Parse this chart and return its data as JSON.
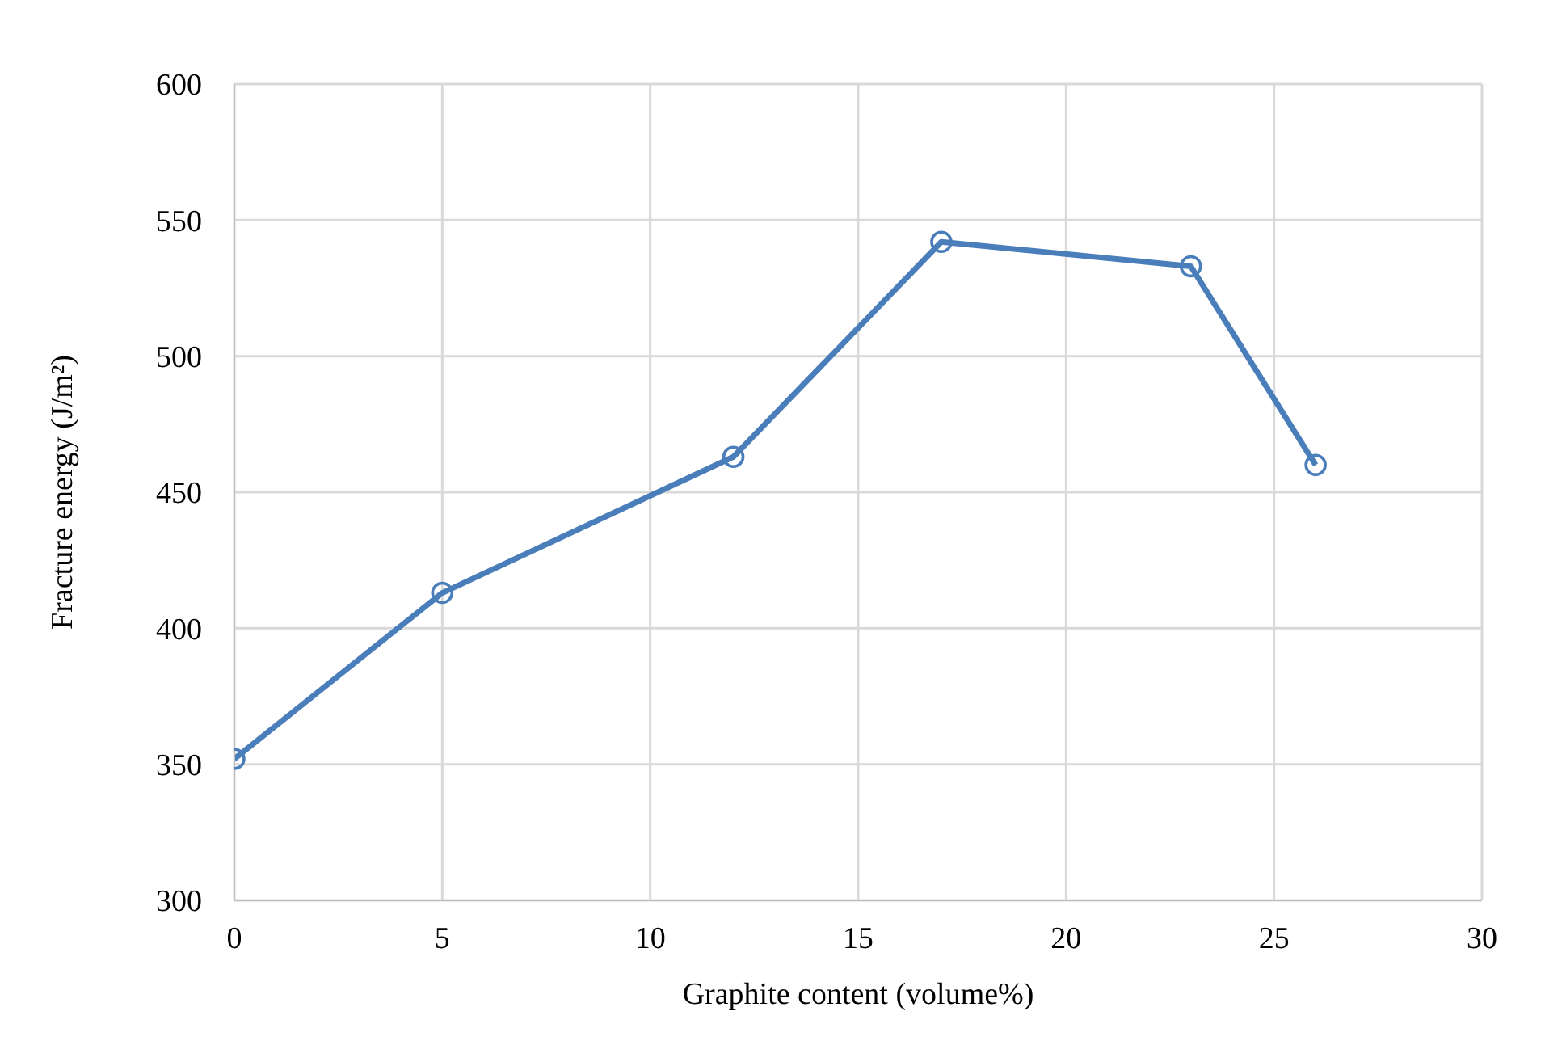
{
  "chart_data": {
    "type": "line",
    "xlabel": "Graphite content (volume%)",
    "ylabel": "Fracture energy (J/m²)",
    "x": [
      0,
      5,
      12,
      17,
      23,
      26
    ],
    "series": [
      {
        "color": "#4a7ebb",
        "values": [
          352,
          413,
          463,
          542,
          533,
          460
        ]
      }
    ],
    "xlim": [
      0,
      30
    ],
    "xticks": [
      0,
      5,
      10,
      15,
      20,
      25,
      30
    ],
    "ylim": [
      300,
      600
    ],
    "yticks": [
      300,
      350,
      400,
      450,
      500,
      550,
      600
    ],
    "grid": true,
    "marker": "circle",
    "line_style": "solid",
    "legend": false
  }
}
